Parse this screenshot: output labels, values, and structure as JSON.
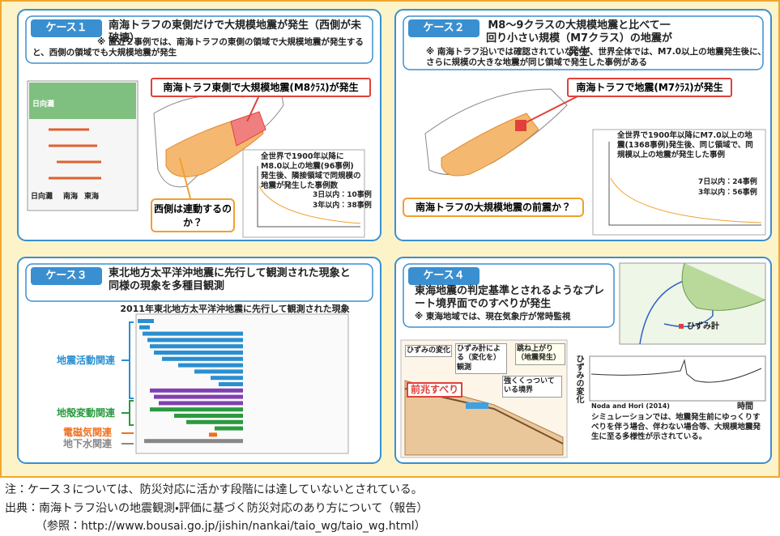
{
  "cases": [
    {
      "label": "ケース１",
      "heading": "南海トラフの東側だけで大規模地震が発生（西側が未破壊）",
      "note": "※ 直近２事例では、南海トラフの東側の領域で大規模地震が発生すると、西側の領域でも大規模地震が発生",
      "callout_main": "南海トラフ東側で大規模地震(M8ｸﾗｽ)が発生",
      "callout_question": "西側は連動するのか？",
      "chart_text": "全世界で1900年以降にM8.0以上の地震(96事例)発生後、隣接領域で同規模の地震が発生した事例数",
      "stat_1": "3日以内：10事例",
      "stat_2": "3年以内：38事例",
      "map_labels": [
        "日向灘",
        "南海",
        "東海"
      ]
    },
    {
      "label": "ケース２",
      "heading": "M8～9クラスの大規模地震と比べて一回り小さい規模（M7クラス）の地震が発生",
      "note": "※ 南海トラフ沿いでは確認されていないが、世界全体では、M7.0以上の地震発生後に、さらに規模の大きな地震が同じ領域で発生した事例がある",
      "callout_main": "南海トラフで地震(M7ｸﾗｽ)が発生",
      "callout_question": "南海トラフの大規模地震の前震か？",
      "chart_text": "全世界で1900年以降にM7.0以上の地震(1368事例)発生後、同じ領域で、同規模以上の地震が発生した事例",
      "stat_1": "7日以内：24事例",
      "stat_2": "3年以内：56事例"
    },
    {
      "label": "ケース３",
      "heading": "東北地方太平洋沖地震に先行して観測された現象と同様の現象を多種目観測",
      "timeline_title": "2011年東北地方太平洋沖地震に先行して観測された現象",
      "groups": [
        "地震活動関連",
        "地殻変動関連",
        "電磁気関連",
        "地下水関連"
      ]
    },
    {
      "label": "ケース４",
      "heading": "東海地震の判定基準とされるようなプレート境界面でのすべりが発生",
      "note": "※ 東海地域では、現在気象庁が常時監視",
      "legend_strainmeter": "ひずみ計",
      "diagram_labels": [
        "ひずみの変化",
        "ひずみ計による（変化を）観測",
        "跳ね上がり（地震発生）",
        "強くくっついている境界",
        "前兆すべり"
      ],
      "graph_ylabel": "ひずみの変化",
      "graph_xlabel": "時間",
      "graph_source": "Noda and Hori (2014)",
      "caption": "シミュレーションでは、地震発生前にゆっくりすべりを伴う場合、伴わない場合等、大規模地震発生に至る多様性が示されている。"
    }
  ],
  "footnotes": [
    "注：ケース３については、防災対応に活かす段階には達していないとされている。",
    "出典：南海トラフ沿いの地震観測・評価に基づく防災対応のあり方について（報告）",
    "（参照：http://www.bousai.go.jp/jishin/nankai/taio_wg/taio_wg.html）"
  ]
}
